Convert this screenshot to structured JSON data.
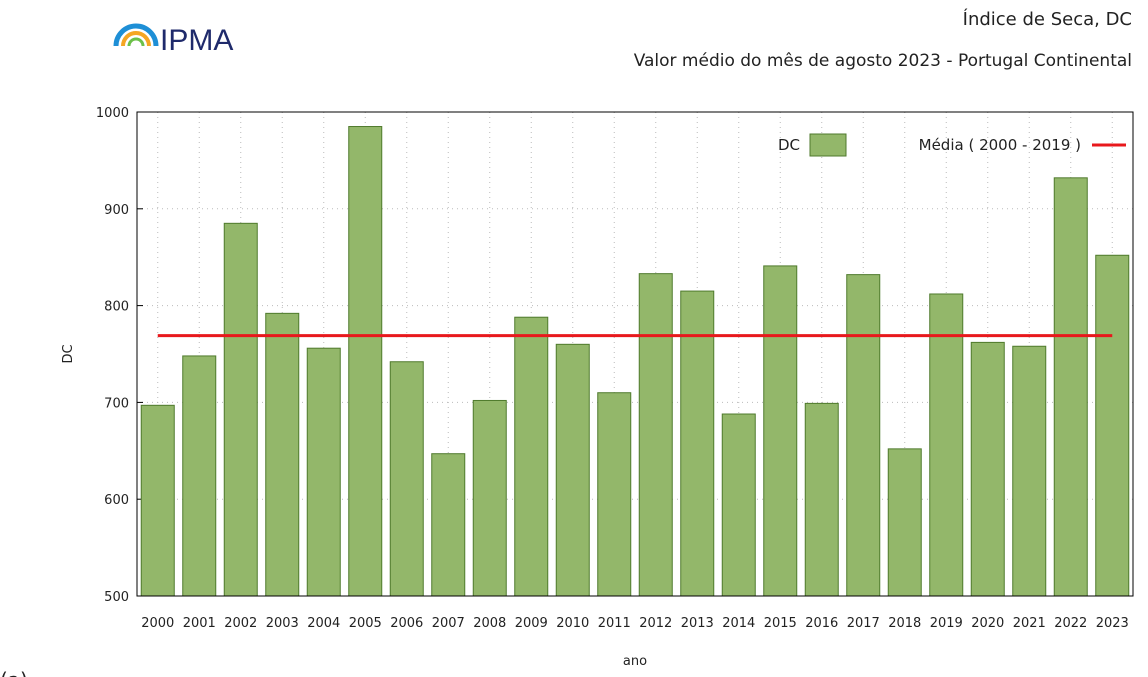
{
  "logo": "IPMA",
  "panel_label": "(a)",
  "chart_data": {
    "type": "bar",
    "title": "Índice de Seca, DC",
    "subtitle": "Valor médio do mês de agosto 2023 - Portugal Continental",
    "x_label": "ano",
    "y_label": "DC",
    "categories": [
      "2000",
      "2001",
      "2002",
      "2003",
      "2004",
      "2005",
      "2006",
      "2007",
      "2008",
      "2009",
      "2010",
      "2011",
      "2012",
      "2013",
      "2014",
      "2015",
      "2016",
      "2017",
      "2018",
      "2019",
      "2020",
      "2021",
      "2022",
      "2023"
    ],
    "series": [
      {
        "name": "DC",
        "color": "#93b76a",
        "values": [
          697,
          748,
          885,
          792,
          756,
          985,
          742,
          647,
          702,
          788,
          760,
          710,
          833,
          815,
          688,
          841,
          699,
          832,
          652,
          812,
          762,
          758,
          932,
          852
        ]
      }
    ],
    "mean_line": {
      "name": "Média ( 2000 - 2019 )",
      "value": 769,
      "color": "#e8181c"
    },
    "ylim": [
      500,
      1000
    ],
    "yticks": [
      500,
      600,
      700,
      800,
      900,
      1000
    ],
    "grid": true,
    "legend_position": "top-right"
  }
}
